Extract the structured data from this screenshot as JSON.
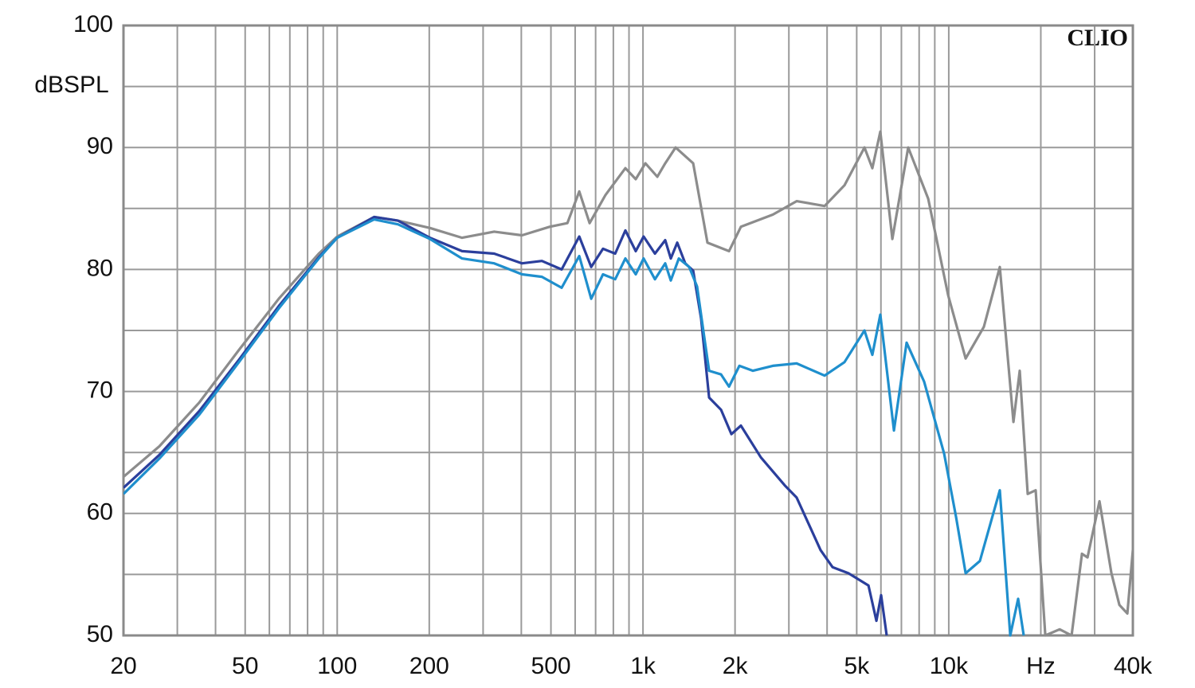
{
  "chart_data": {
    "type": "line",
    "y_label": "dBSPL",
    "annotation": "CLIO",
    "xscale": "log",
    "xlim": [
      20,
      40000
    ],
    "ylim": [
      50,
      100
    ],
    "xticks": [
      20,
      50,
      100,
      200,
      500,
      {
        "value": 1000,
        "label": "1k"
      },
      {
        "value": 2000,
        "label": "2k"
      },
      {
        "value": 5000,
        "label": "5k"
      },
      {
        "value": 10000,
        "label": "10k"
      },
      {
        "value": 20000,
        "label": "Hz"
      },
      {
        "value": 40000,
        "label": "40k"
      }
    ],
    "x_minor_grid": [
      30,
      40,
      60,
      70,
      80,
      90,
      300,
      400,
      600,
      700,
      800,
      900,
      3000,
      4000,
      6000,
      7000,
      8000,
      9000,
      30000
    ],
    "yticks": [
      50,
      60,
      70,
      80,
      90,
      100
    ],
    "y_minor_grid": [
      55,
      65,
      75,
      85,
      95
    ],
    "grid": true,
    "series": [
      {
        "color": "#8c8c8c",
        "x": [
          20,
          26.2,
          35.4,
          47.7,
          64.4,
          87,
          100,
          132,
          158,
          201,
          256,
          326,
          402,
          495,
          566,
          619,
          669,
          754,
          876,
          947,
          1018,
          1114,
          1182,
          1278,
          1459,
          1625,
          1911,
          2090,
          2658,
          3182,
          3926,
          4560,
          5299,
          5626,
          5974,
          6537,
          7369,
          8563,
          9952,
          11352,
          13031,
          14691,
          16272,
          17069,
          18124,
          19244,
          20684,
          23045,
          25216,
          27263,
          28434,
          31102,
          34034,
          36142,
          38377,
          40000
        ],
        "values": [
          63,
          65.5,
          69.1,
          73.4,
          77.6,
          81.3,
          82.7,
          84.3,
          84,
          83.4,
          82.6,
          83.1,
          82.8,
          83.5,
          83.8,
          86.4,
          83.8,
          86.1,
          88.3,
          87.4,
          88.7,
          87.6,
          88.7,
          90,
          88.7,
          82.2,
          81.5,
          83.5,
          84.5,
          85.6,
          85.2,
          86.9,
          90,
          88.3,
          91.3,
          82.5,
          90,
          85.8,
          77.9,
          72.7,
          75.3,
          80.2,
          67.5,
          71.7,
          61.6,
          61.9,
          50,
          50.5,
          50,
          56.7,
          56.4,
          61,
          55.1,
          52.5,
          51.8,
          57
        ]
      },
      {
        "color": "#2b3f9c",
        "x": [
          20,
          26.2,
          35.4,
          47.7,
          64.4,
          87,
          100,
          132,
          158,
          201,
          256,
          326,
          402,
          467,
          542,
          619,
          677,
          740,
          811,
          876,
          947,
          1005,
          1094,
          1182,
          1233,
          1294,
          1374,
          1459,
          1549,
          1645,
          1800,
          1946,
          2090,
          2429,
          2909,
          3182,
          3809,
          4168,
          4699,
          5462,
          5799,
          6010,
          6267
        ],
        "values": [
          62.1,
          64.8,
          68.4,
          72.6,
          77,
          81,
          82.6,
          84.3,
          84,
          82.6,
          81.5,
          81.3,
          80.5,
          80.7,
          80,
          82.7,
          80.2,
          81.7,
          81.3,
          83.2,
          81.5,
          82.7,
          81.3,
          82.4,
          80.9,
          82.2,
          80.5,
          79.9,
          76,
          69.5,
          68.5,
          66.5,
          67.2,
          64.6,
          62.3,
          61.3,
          57,
          55.6,
          55.1,
          54.1,
          51.2,
          53.3,
          50
        ]
      },
      {
        "color": "#1f8fcd",
        "x": [
          20,
          26.2,
          35.4,
          47.7,
          64.4,
          87,
          100,
          132,
          158,
          201,
          256,
          326,
          402,
          467,
          542,
          619,
          677,
          740,
          811,
          876,
          947,
          1005,
          1094,
          1182,
          1233,
          1310,
          1416,
          1503,
          1596,
          1645,
          1800,
          1911,
          2066,
          2288,
          2658,
          3182,
          3926,
          4560,
          5299,
          5626,
          5974,
          6616,
          7281,
          8309,
          9657,
          10565,
          11352,
          12646,
          14691,
          15887,
          16866,
          17589
        ],
        "values": [
          61.6,
          64.5,
          68.1,
          72.4,
          76.8,
          80.9,
          82.6,
          84.1,
          83.7,
          82.5,
          80.9,
          80.5,
          79.6,
          79.4,
          78.5,
          81.1,
          77.6,
          79.6,
          79.2,
          80.9,
          79.6,
          80.9,
          79.2,
          80.5,
          79.1,
          80.9,
          80.2,
          78.6,
          74,
          71.7,
          71.4,
          70.4,
          72.1,
          71.7,
          72.1,
          72.3,
          71.3,
          72.4,
          75,
          73,
          76.3,
          66.8,
          74,
          70.8,
          64.9,
          59.7,
          55.1,
          56.1,
          61.9,
          50,
          53,
          50
        ]
      }
    ]
  }
}
